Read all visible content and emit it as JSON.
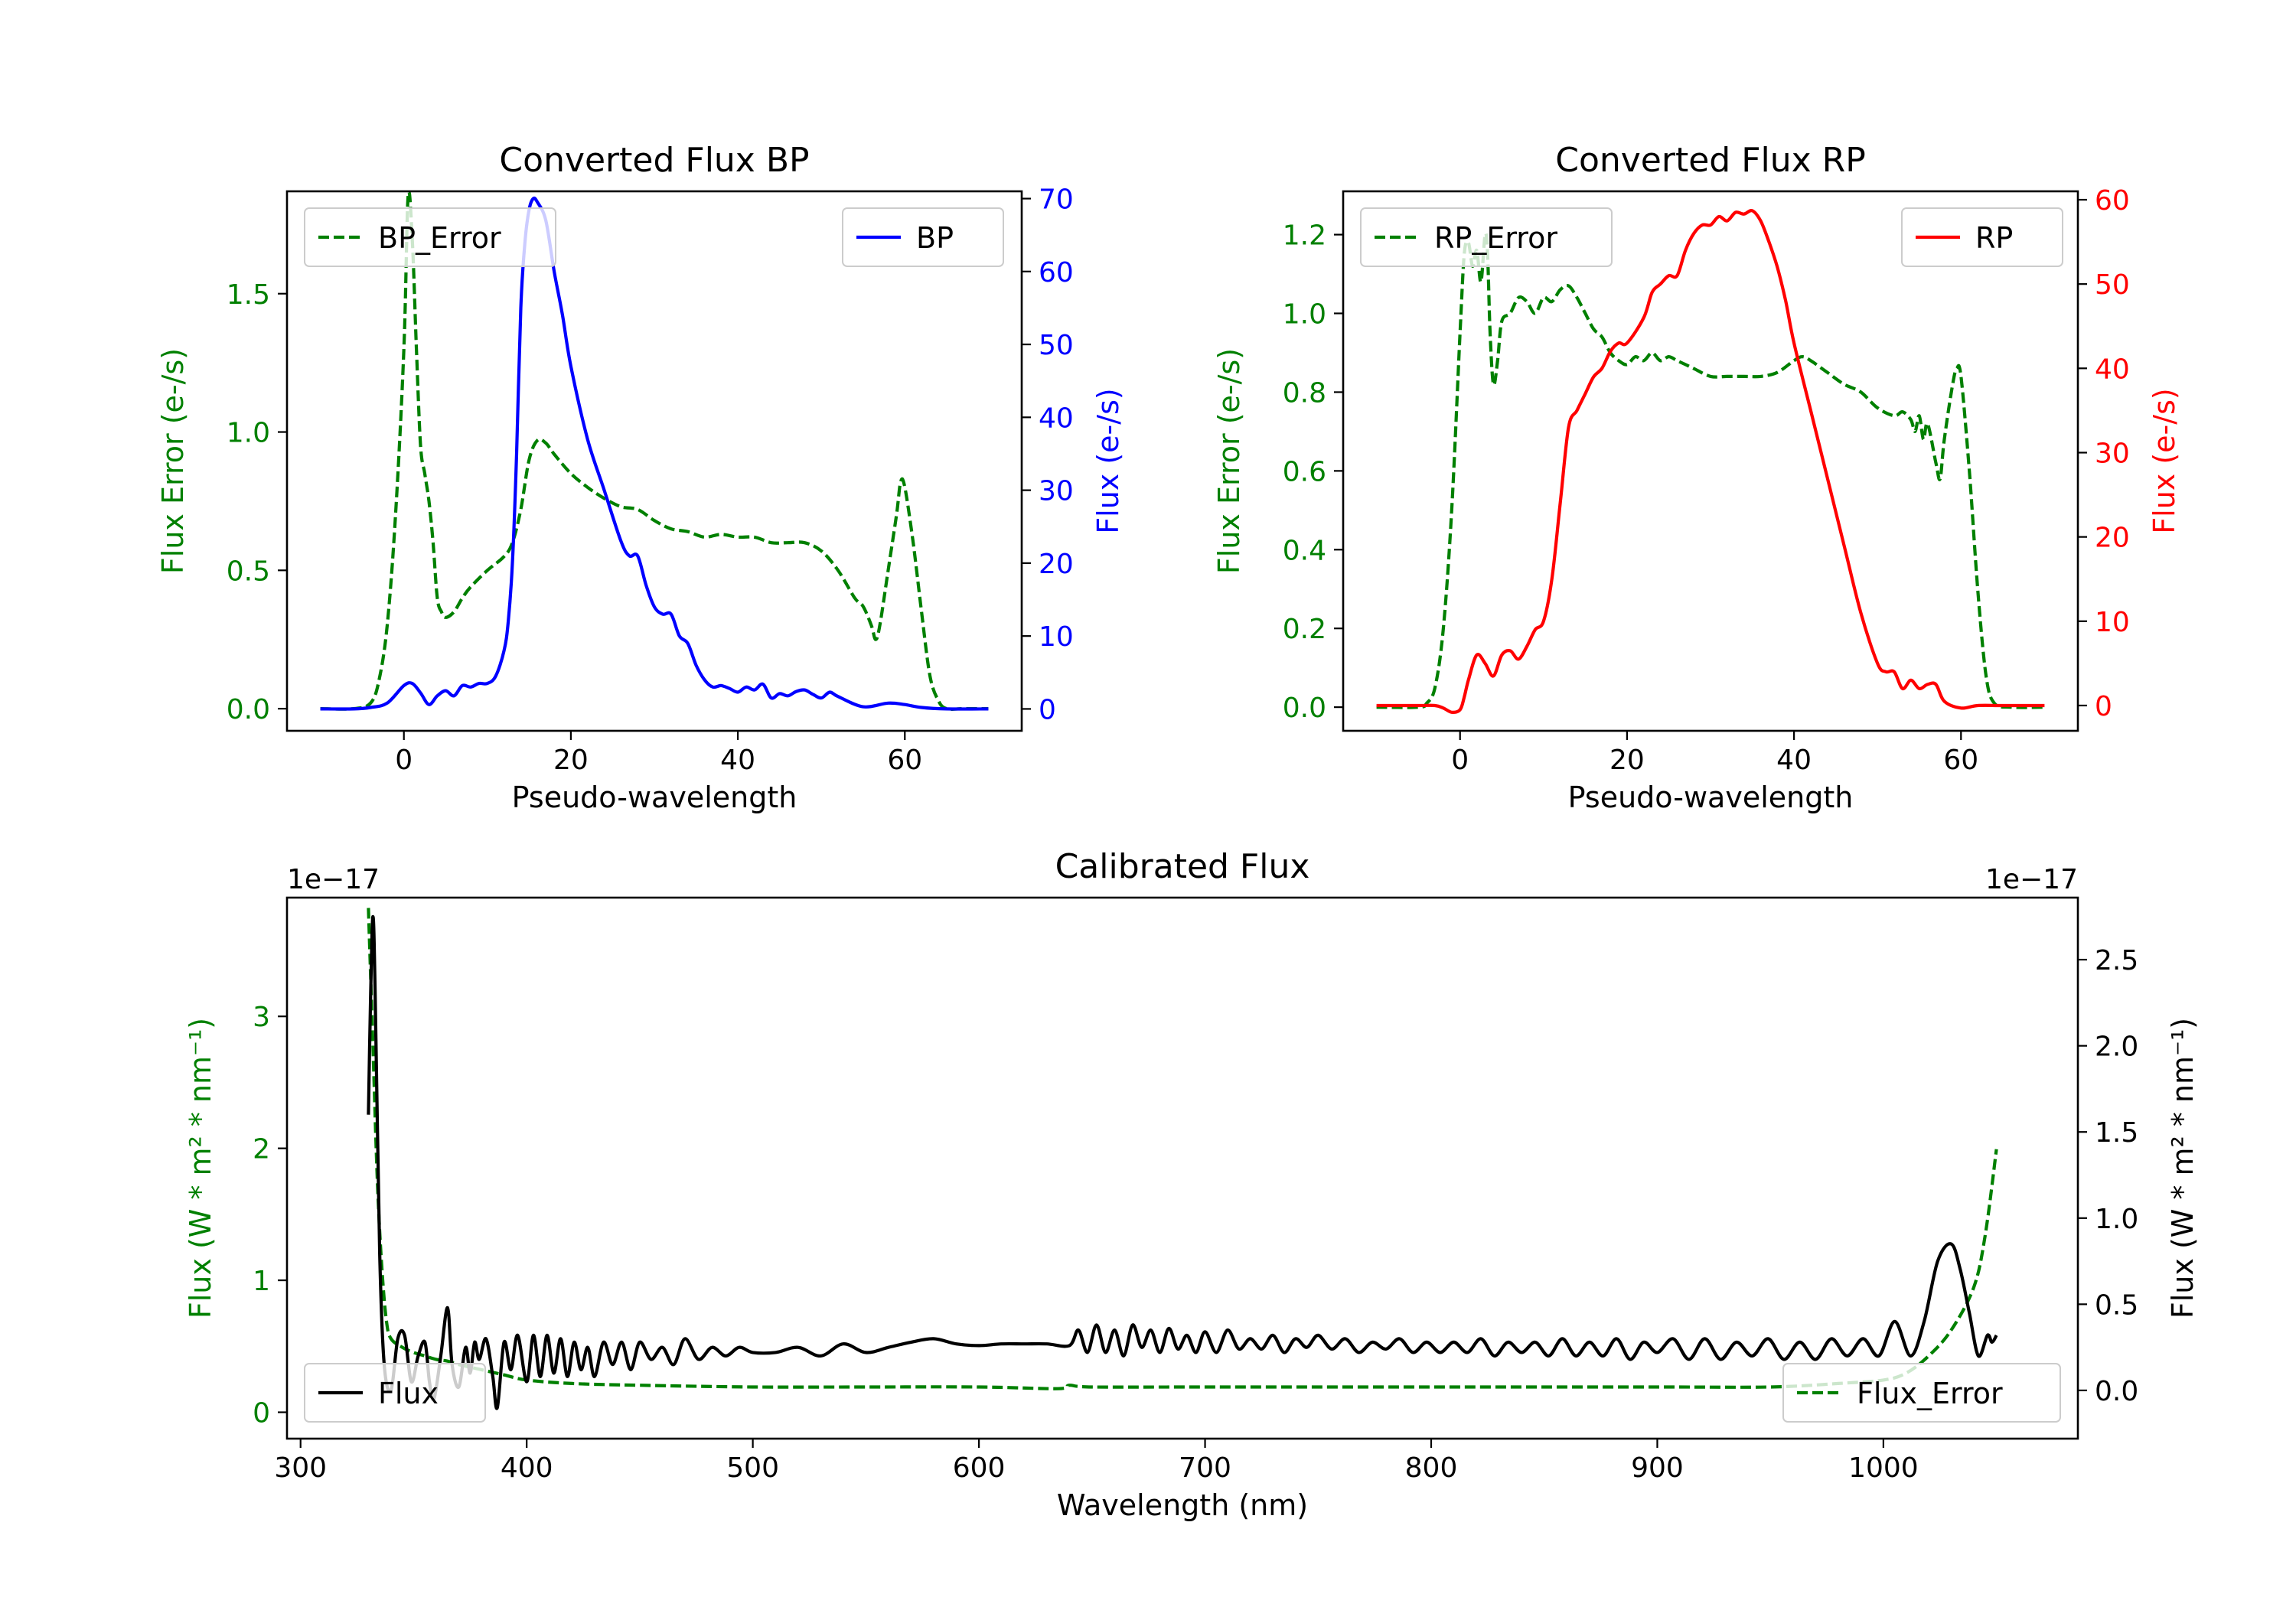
{
  "colors": {
    "error": "#008000",
    "bp": "#0000ff",
    "rp": "#ff0000",
    "flux": "#000000"
  },
  "chart_data": [
    {
      "type": "line",
      "title": "Converted Flux BP",
      "xlabel": "Pseudo-wavelength",
      "ylabel_left": "Flux Error (e-/s)",
      "ylabel_right": "Flux (e-/s)",
      "xlim": [
        -14,
        74
      ],
      "ylim_left": [
        -0.08,
        1.87
      ],
      "ylim_right": [
        -3,
        71
      ],
      "xticks": [
        0,
        20,
        40,
        60
      ],
      "yticks_left": [
        0.0,
        0.5,
        1.0,
        1.5
      ],
      "yticks_left_labels": [
        "0.0",
        "0.5",
        "1.0",
        "1.5"
      ],
      "yticks_right": [
        0,
        10,
        20,
        30,
        40,
        50,
        60,
        70
      ],
      "yticks_right_labels": [
        "0",
        "10",
        "20",
        "30",
        "40",
        "50",
        "60",
        "70"
      ],
      "legend_left": {
        "label": "BP_Error",
        "position": "upper left"
      },
      "legend_right": {
        "label": "BP",
        "position": "upper right"
      },
      "series": [
        {
          "name": "BP_Error",
          "axis": "left",
          "style": "dashed",
          "color": "#008000",
          "x": [
            -10,
            -6,
            -4,
            -3,
            -2,
            -1,
            0,
            0.5,
            1,
            1.5,
            2,
            2.5,
            3,
            3.5,
            4,
            4.5,
            5,
            6,
            7,
            8,
            10,
            12,
            13,
            14,
            15,
            16,
            17,
            18,
            20,
            22,
            24,
            26,
            28,
            30,
            32,
            34,
            36,
            38,
            40,
            42,
            44,
            46,
            48,
            50,
            52,
            54,
            55,
            56,
            56.5,
            57,
            58,
            59,
            59.5,
            60,
            61,
            62,
            63,
            64,
            65,
            67,
            70
          ],
          "y": [
            0,
            0,
            0.02,
            0.1,
            0.3,
            0.7,
            1.3,
            1.85,
            1.7,
            1.3,
            0.95,
            0.85,
            0.75,
            0.6,
            0.4,
            0.35,
            0.33,
            0.35,
            0.4,
            0.44,
            0.5,
            0.55,
            0.6,
            0.72,
            0.9,
            0.97,
            0.96,
            0.92,
            0.85,
            0.8,
            0.76,
            0.73,
            0.72,
            0.68,
            0.65,
            0.64,
            0.62,
            0.63,
            0.62,
            0.62,
            0.6,
            0.6,
            0.6,
            0.57,
            0.5,
            0.4,
            0.37,
            0.3,
            0.25,
            0.3,
            0.5,
            0.7,
            0.82,
            0.8,
            0.6,
            0.35,
            0.12,
            0.03,
            0,
            0,
            0
          ]
        },
        {
          "name": "BP",
          "axis": "right",
          "style": "solid",
          "color": "#0000ff",
          "x": [
            -10,
            -6,
            -4,
            -2,
            0,
            1,
            2,
            3,
            4,
            5,
            6,
            7,
            8,
            9,
            10,
            11,
            12,
            12.5,
            13,
            13.5,
            14,
            14.5,
            15,
            15.5,
            16,
            17,
            18,
            19,
            20,
            22,
            24,
            26,
            27,
            28,
            29,
            30,
            31,
            32,
            33,
            34,
            35,
            36,
            37,
            38,
            39,
            40,
            41,
            42,
            43,
            44,
            45,
            46,
            47,
            48,
            49,
            50,
            51,
            52,
            55,
            58,
            60,
            62,
            65,
            70
          ],
          "y": [
            0,
            0,
            0.2,
            0.8,
            3.2,
            3.5,
            2.2,
            0.6,
            1.8,
            2.5,
            1.8,
            3.2,
            3,
            3.5,
            3.5,
            4.5,
            8,
            12,
            20,
            35,
            55,
            64,
            68.5,
            70,
            69.5,
            67,
            60,
            54,
            47,
            37,
            30,
            23,
            21,
            21,
            17,
            14,
            13,
            13,
            10,
            9,
            6,
            4,
            3,
            3.2,
            2.8,
            2.3,
            3,
            2.6,
            3.4,
            1.5,
            2.1,
            1.8,
            2.4,
            2.6,
            2,
            1.5,
            2.3,
            1.7,
            0.3,
            0.8,
            0.6,
            0.2,
            0,
            0
          ]
        }
      ]
    },
    {
      "type": "line",
      "title": "Converted Flux RP",
      "xlabel": "Pseudo-wavelength",
      "ylabel_left": "Flux Error (e-/s)",
      "ylabel_right": "Flux (e-/s)",
      "xlim": [
        -14,
        74
      ],
      "ylim_left": [
        -0.06,
        1.31
      ],
      "ylim_right": [
        -3,
        61
      ],
      "xticks": [
        0,
        20,
        40,
        60
      ],
      "yticks_left": [
        0.0,
        0.2,
        0.4,
        0.6,
        0.8,
        1.0,
        1.2
      ],
      "yticks_left_labels": [
        "0.0",
        "0.2",
        "0.4",
        "0.6",
        "0.8",
        "1.0",
        "1.2"
      ],
      "yticks_right": [
        0,
        10,
        20,
        30,
        40,
        50,
        60
      ],
      "yticks_right_labels": [
        "0",
        "10",
        "20",
        "30",
        "40",
        "50",
        "60"
      ],
      "legend_left": {
        "label": "RP_Error",
        "position": "upper left"
      },
      "legend_right": {
        "label": "RP",
        "position": "upper right"
      },
      "series": [
        {
          "name": "RP_Error",
          "axis": "left",
          "style": "dashed",
          "color": "#008000",
          "x": [
            -10,
            -5,
            -4,
            -3,
            -2,
            -1,
            0,
            0.5,
            1,
            1.5,
            2,
            2.5,
            3,
            3.3,
            3.6,
            4,
            4.5,
            5,
            6,
            7,
            8,
            9,
            10,
            11,
            12,
            13,
            14,
            15,
            16,
            17,
            18,
            19,
            20,
            21,
            22,
            23,
            24,
            25,
            26,
            27,
            28,
            30,
            32,
            34,
            36,
            38,
            40,
            41,
            42,
            44,
            46,
            48,
            50,
            52,
            53,
            54,
            54.5,
            55,
            55.5,
            56,
            57,
            57.5,
            58,
            59,
            59.5,
            60,
            61,
            62,
            63,
            64,
            66,
            70
          ],
          "y": [
            0,
            0,
            0.01,
            0.05,
            0.2,
            0.5,
            0.95,
            1.15,
            1.18,
            1.12,
            1.16,
            1.08,
            1.2,
            1.15,
            0.95,
            0.82,
            0.88,
            0.98,
            1.0,
            1.04,
            1.03,
            1.0,
            1.04,
            1.03,
            1.06,
            1.07,
            1.04,
            1.0,
            0.96,
            0.94,
            0.9,
            0.88,
            0.87,
            0.89,
            0.88,
            0.9,
            0.88,
            0.89,
            0.88,
            0.87,
            0.86,
            0.84,
            0.84,
            0.84,
            0.84,
            0.85,
            0.88,
            0.89,
            0.88,
            0.85,
            0.82,
            0.8,
            0.76,
            0.74,
            0.75,
            0.73,
            0.7,
            0.74,
            0.68,
            0.72,
            0.62,
            0.58,
            0.68,
            0.82,
            0.86,
            0.84,
            0.6,
            0.3,
            0.08,
            0.01,
            0,
            0
          ]
        },
        {
          "name": "RP",
          "axis": "right",
          "style": "solid",
          "color": "#ff0000",
          "x": [
            -10,
            -5,
            -3,
            -2,
            -1,
            0,
            0.5,
            1,
            2,
            3,
            4,
            5,
            6,
            7,
            8,
            9,
            10,
            11,
            12,
            13,
            14,
            15,
            16,
            17,
            18,
            19,
            20,
            22,
            23,
            24,
            25,
            26,
            27,
            28,
            29,
            30,
            31,
            32,
            33,
            34,
            35,
            36,
            37,
            38,
            39,
            40,
            42,
            44,
            46,
            48,
            50,
            51,
            52,
            53,
            54,
            55,
            56,
            57,
            58,
            60,
            62,
            65,
            70
          ],
          "y": [
            0,
            0,
            0,
            -0.3,
            -0.8,
            -0.5,
            1,
            3,
            6,
            5,
            3.5,
            6,
            6.5,
            5.5,
            7,
            9,
            10,
            15,
            24,
            33,
            35,
            37,
            39,
            40,
            42,
            43,
            43,
            46,
            49,
            50,
            51,
            51,
            54,
            56,
            57,
            57,
            58,
            57.5,
            58.5,
            58.3,
            58.7,
            57.5,
            55,
            52,
            48,
            43,
            35,
            27,
            19,
            11,
            5,
            4,
            4,
            2,
            3,
            2,
            2.5,
            2.5,
            0.5,
            -0.3,
            0,
            0,
            0
          ]
        }
      ]
    },
    {
      "type": "line",
      "title": "Calibrated Flux",
      "xlabel": "Wavelength (nm)",
      "ylabel_left": "Flux (W * m² * nm⁻¹)",
      "ylabel_right": "Flux (W * m² * nm⁻¹)",
      "offset_left": "1e−17",
      "offset_right": "1e−17",
      "xlim": [
        294,
        1086
      ],
      "ylim_left": [
        -0.2,
        3.9
      ],
      "ylim_right": [
        -0.28,
        2.86
      ],
      "xticks": [
        300,
        400,
        500,
        600,
        700,
        800,
        900,
        1000
      ],
      "yticks_left": [
        0,
        1,
        2,
        3
      ],
      "yticks_left_labels": [
        "0",
        "1",
        "2",
        "3"
      ],
      "yticks_right": [
        0.0,
        0.5,
        1.0,
        1.5,
        2.0,
        2.5
      ],
      "yticks_right_labels": [
        "0.0",
        "0.5",
        "1.0",
        "1.5",
        "2.0",
        "2.5"
      ],
      "legend_left": {
        "label": "Flux",
        "position": "lower left"
      },
      "legend_right": {
        "label": "Flux_Error",
        "position": "lower right"
      },
      "series": [
        {
          "name": "Flux_Error",
          "axis": "right",
          "style": "dashed",
          "color": "#008000",
          "x": [
            330,
            332,
            334,
            336,
            338,
            340,
            345,
            350,
            355,
            360,
            365,
            370,
            380,
            390,
            400,
            420,
            450,
            500,
            550,
            600,
            635,
            640,
            650,
            700,
            800,
            900,
            950,
            980,
            1000,
            1010,
            1020,
            1030,
            1040,
            1045,
            1050
          ],
          "y": [
            2.8,
            2.0,
            1.2,
            0.7,
            0.4,
            0.3,
            0.25,
            0.22,
            0.2,
            0.18,
            0.17,
            0.15,
            0.12,
            0.09,
            0.06,
            0.04,
            0.03,
            0.02,
            0.02,
            0.02,
            0.01,
            0.03,
            0.02,
            0.02,
            0.02,
            0.02,
            0.02,
            0.04,
            0.06,
            0.1,
            0.2,
            0.35,
            0.6,
            0.9,
            1.4
          ]
        },
        {
          "name": "Flux",
          "axis": "right",
          "style": "solid",
          "color": "#000000",
          "x": [
            330,
            331,
            332,
            333,
            335,
            337,
            340,
            343,
            346,
            349,
            352,
            355,
            357,
            359,
            362,
            365,
            367,
            370,
            373,
            375,
            377,
            379,
            382,
            385,
            387,
            390,
            393,
            396,
            400,
            403,
            406,
            409,
            412,
            415,
            418,
            421,
            424,
            427,
            430,
            434,
            438,
            442,
            446,
            450,
            455,
            460,
            465,
            470,
            476,
            482,
            488,
            494,
            500,
            510,
            520,
            530,
            540,
            550,
            560,
            570,
            580,
            590,
            600,
            610,
            620,
            630,
            640,
            644,
            648,
            652,
            656,
            660,
            664,
            668,
            672,
            676,
            680,
            684,
            688,
            692,
            696,
            700,
            705,
            710,
            715,
            720,
            725,
            730,
            735,
            740,
            745,
            750,
            756,
            762,
            768,
            774,
            780,
            786,
            792,
            798,
            804,
            810,
            816,
            822,
            828,
            834,
            840,
            846,
            852,
            858,
            864,
            870,
            876,
            882,
            888,
            894,
            900,
            907,
            914,
            921,
            928,
            935,
            942,
            949,
            956,
            963,
            970,
            977,
            984,
            991,
            998,
            1005,
            1012,
            1018,
            1024,
            1030,
            1034,
            1038,
            1042,
            1046,
            1048,
            1050
          ],
          "y": [
            1.6,
            2.3,
            2.75,
            2.3,
            0.8,
            0.15,
            0.0,
            0.3,
            0.32,
            0.05,
            0.2,
            0.28,
            0.05,
            -0.05,
            0.2,
            0.48,
            0.15,
            0.02,
            0.25,
            0.1,
            0.28,
            0.18,
            0.3,
            0.08,
            -0.1,
            0.28,
            0.12,
            0.32,
            0.05,
            0.32,
            0.08,
            0.32,
            0.1,
            0.3,
            0.08,
            0.28,
            0.12,
            0.25,
            0.08,
            0.28,
            0.15,
            0.28,
            0.12,
            0.28,
            0.18,
            0.25,
            0.15,
            0.3,
            0.18,
            0.25,
            0.2,
            0.25,
            0.22,
            0.22,
            0.25,
            0.2,
            0.27,
            0.22,
            0.25,
            0.28,
            0.3,
            0.27,
            0.26,
            0.27,
            0.27,
            0.27,
            0.26,
            0.35,
            0.22,
            0.38,
            0.22,
            0.35,
            0.2,
            0.38,
            0.25,
            0.35,
            0.22,
            0.36,
            0.24,
            0.32,
            0.22,
            0.34,
            0.22,
            0.35,
            0.24,
            0.3,
            0.24,
            0.32,
            0.22,
            0.3,
            0.25,
            0.32,
            0.24,
            0.3,
            0.22,
            0.28,
            0.24,
            0.3,
            0.22,
            0.28,
            0.22,
            0.28,
            0.22,
            0.3,
            0.2,
            0.28,
            0.22,
            0.28,
            0.2,
            0.3,
            0.2,
            0.28,
            0.2,
            0.3,
            0.18,
            0.28,
            0.22,
            0.3,
            0.18,
            0.3,
            0.18,
            0.28,
            0.2,
            0.3,
            0.18,
            0.28,
            0.18,
            0.3,
            0.2,
            0.3,
            0.2,
            0.4,
            0.2,
            0.4,
            0.75,
            0.85,
            0.7,
            0.45,
            0.2,
            0.32,
            0.28,
            0.32
          ]
        }
      ]
    }
  ]
}
